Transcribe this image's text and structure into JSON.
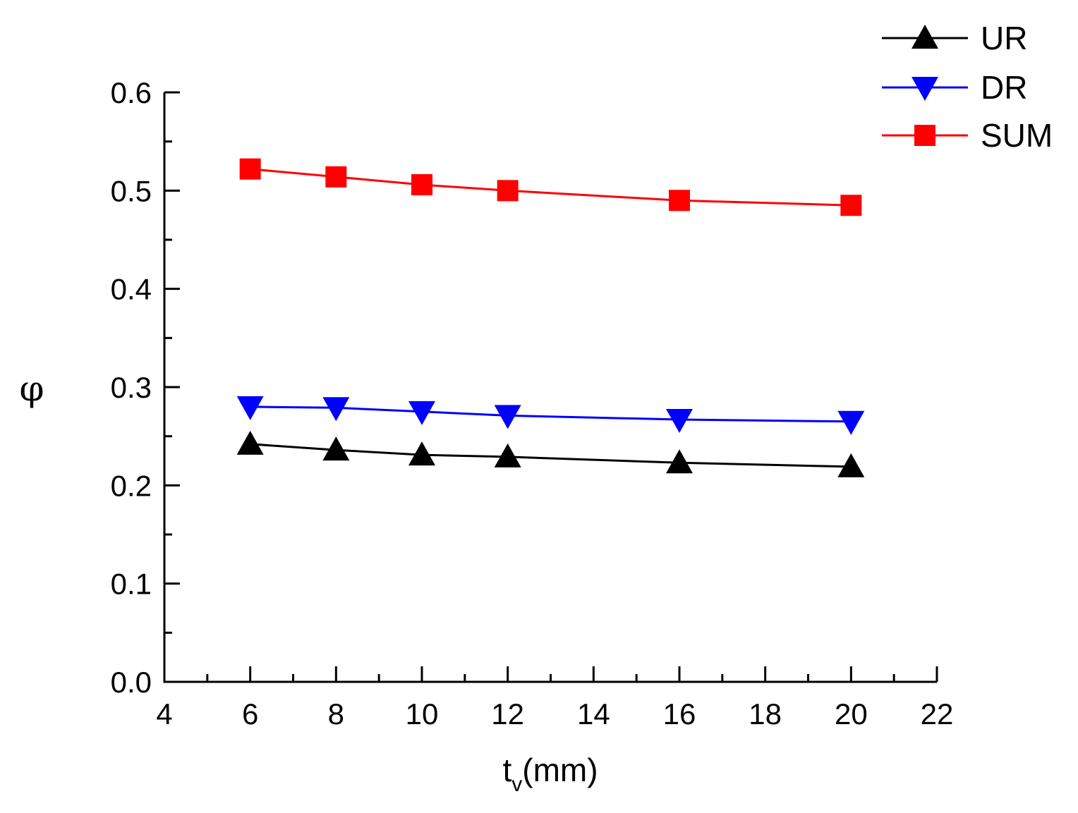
{
  "chart_data": {
    "type": "line",
    "title": "",
    "xlabel_main": "t",
    "xlabel_sub": "v",
    "xlabel_unit": "(mm)",
    "ylabel": "φ",
    "xlim": [
      4,
      22
    ],
    "ylim": [
      0.0,
      0.6
    ],
    "xticks": [
      4,
      6,
      8,
      10,
      12,
      14,
      16,
      18,
      20,
      22
    ],
    "xtick_labels": [
      "4",
      "6",
      "8",
      "10",
      "12",
      "14",
      "16",
      "18",
      "20",
      "22"
    ],
    "yticks": [
      0.0,
      0.1,
      0.2,
      0.3,
      0.4,
      0.5,
      0.6
    ],
    "ytick_labels": [
      "0.0",
      "0.1",
      "0.2",
      "0.3",
      "0.4",
      "0.5",
      "0.6"
    ],
    "x": [
      6,
      8,
      10,
      12,
      16,
      20
    ],
    "grid": false,
    "legend_position": "top-right",
    "series": [
      {
        "name": "UR",
        "color": "#000000",
        "marker": "triangle-up",
        "values": [
          0.242,
          0.236,
          0.231,
          0.229,
          0.223,
          0.219
        ]
      },
      {
        "name": "DR",
        "color": "#0000ff",
        "marker": "triangle-down",
        "values": [
          0.28,
          0.279,
          0.275,
          0.271,
          0.267,
          0.265
        ]
      },
      {
        "name": "SUM",
        "color": "#ff0000",
        "marker": "square",
        "values": [
          0.522,
          0.514,
          0.506,
          0.5,
          0.49,
          0.485
        ]
      }
    ]
  }
}
